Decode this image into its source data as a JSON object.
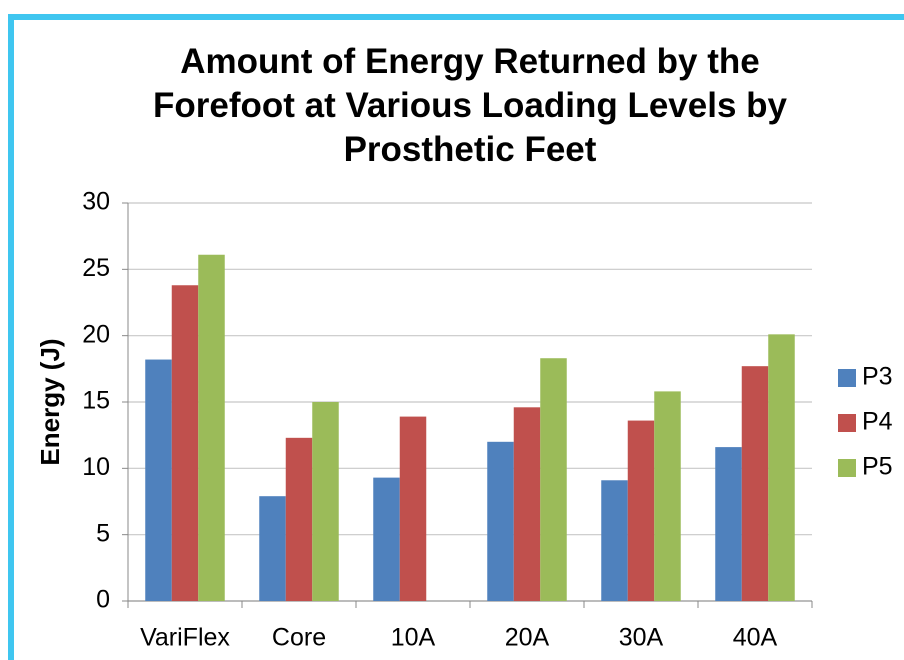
{
  "chart_data": {
    "type": "bar",
    "title": "Amount of Energy Returned by the Forefoot at Various Loading Levels by Prosthetic Feet",
    "y_label": "Energy (J)",
    "categories": [
      "VariFlex",
      "Core",
      "10A",
      "20A",
      "30A",
      "40A"
    ],
    "series": [
      {
        "name": "P3",
        "color": "#4f81bd",
        "values": [
          18.2,
          7.9,
          9.3,
          12.0,
          9.1,
          11.6
        ]
      },
      {
        "name": "P4",
        "color": "#c0504d",
        "values": [
          23.8,
          12.3,
          13.9,
          14.6,
          13.6,
          17.7
        ]
      },
      {
        "name": "P5",
        "color": "#9bbb59",
        "values": [
          26.1,
          15.0,
          null,
          18.3,
          15.8,
          20.1
        ]
      }
    ],
    "ylim": [
      0,
      30
    ],
    "yticks": [
      0,
      5,
      10,
      15,
      20,
      25,
      30
    ],
    "grid": true,
    "legend": "right"
  }
}
